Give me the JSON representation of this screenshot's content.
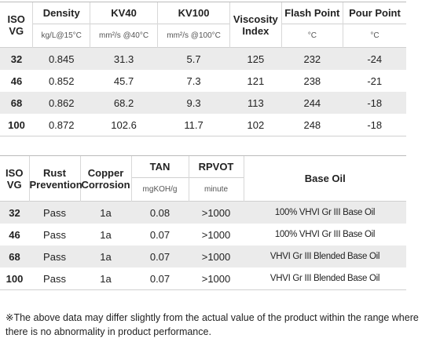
{
  "table1": {
    "headers": {
      "iso": "ISO VG",
      "density": "Density",
      "density_unit": "kg/L@15°C",
      "kv40": "KV40",
      "kv40_unit": "mm²/s @40°C",
      "kv100": "KV100",
      "kv100_unit": "mm²/s @100°C",
      "vi": "Viscosity Index",
      "flash": "Flash Point",
      "flash_unit": "°C",
      "pour": "Pour Point",
      "pour_unit": "°C"
    },
    "rows": [
      {
        "iso": "32",
        "density": "0.845",
        "kv40": "31.3",
        "kv100": "5.7",
        "vi": "125",
        "flash": "232",
        "pour": "-24"
      },
      {
        "iso": "46",
        "density": "0.852",
        "kv40": "45.7",
        "kv100": "7.3",
        "vi": "121",
        "flash": "238",
        "pour": "-21"
      },
      {
        "iso": "68",
        "density": "0.862",
        "kv40": "68.2",
        "kv100": "9.3",
        "vi": "113",
        "flash": "244",
        "pour": "-18"
      },
      {
        "iso": "100",
        "density": "0.872",
        "kv40": "102.6",
        "kv100": "11.7",
        "vi": "102",
        "flash": "248",
        "pour": "-18"
      }
    ]
  },
  "table2": {
    "headers": {
      "iso": "ISO VG",
      "rust": "Rust Prevention",
      "copper": "Copper Corrosion",
      "tan": "TAN",
      "tan_unit": "mgKOH/g",
      "rpvot": "RPVOT",
      "rpvot_unit": "minute",
      "base": "Base Oil"
    },
    "rows": [
      {
        "iso": "32",
        "rust": "Pass",
        "copper": "1a",
        "tan": "0.08",
        "rpvot": ">1000",
        "base": "100% VHVI Gr III Base Oil"
      },
      {
        "iso": "46",
        "rust": "Pass",
        "copper": "1a",
        "tan": "0.07",
        "rpvot": ">1000",
        "base": "100% VHVI Gr III Base Oil"
      },
      {
        "iso": "68",
        "rust": "Pass",
        "copper": "1a",
        "tan": "0.07",
        "rpvot": ">1000",
        "base": "VHVI Gr III Blended Base Oil"
      },
      {
        "iso": "100",
        "rust": "Pass",
        "copper": "1a",
        "tan": "0.07",
        "rpvot": ">1000",
        "base": "VHVI Gr III Blended Base Oil"
      }
    ]
  },
  "note": "※The above data may differ slightly from the actual value of the product within the range where there is no abnormality in product performance."
}
